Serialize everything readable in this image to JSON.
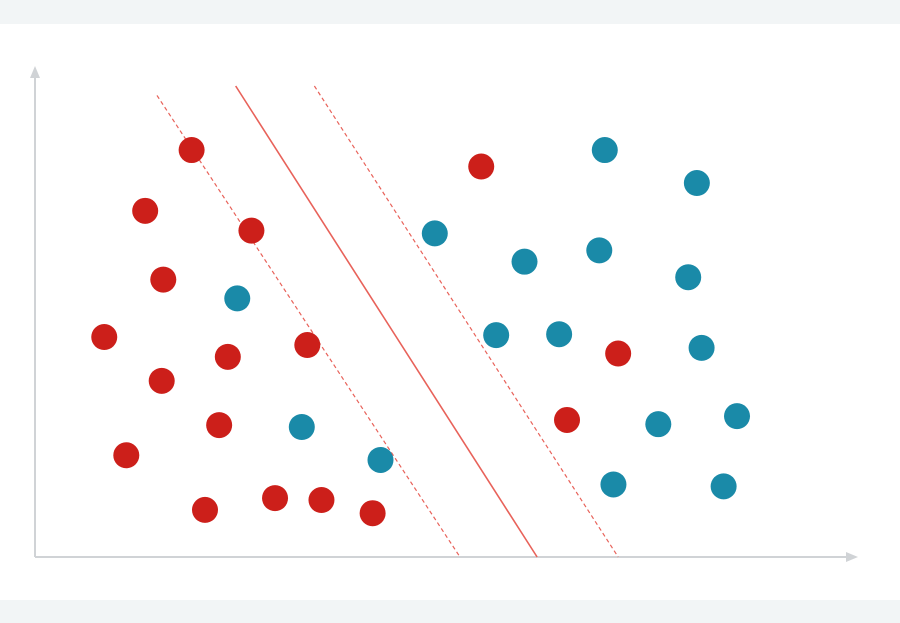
{
  "chart_data": {
    "type": "scatter",
    "title": "",
    "xlabel": "",
    "ylabel": "",
    "xlim": [
      0,
      100
    ],
    "ylim": [
      0,
      100
    ],
    "grid": false,
    "colors": {
      "class_a": "#cc1f1a",
      "class_b": "#1a8aa8",
      "hyperplane": "#e8625a",
      "axis": "#d0d3d6",
      "background": "#ffffff",
      "band": "#f2f5f6"
    },
    "series": [
      {
        "color_key": "class_a",
        "points": [
          [
            19.9,
            86.4
          ],
          [
            14.0,
            73.5
          ],
          [
            27.5,
            69.3
          ],
          [
            16.3,
            58.9
          ],
          [
            8.8,
            46.7
          ],
          [
            24.5,
            42.5
          ],
          [
            34.6,
            45.0
          ],
          [
            16.1,
            37.4
          ],
          [
            23.4,
            28.0
          ],
          [
            11.6,
            21.6
          ],
          [
            21.6,
            10.0
          ],
          [
            30.5,
            12.5
          ],
          [
            36.4,
            12.1
          ],
          [
            42.9,
            9.3
          ],
          [
            56.7,
            82.9
          ],
          [
            74.1,
            43.2
          ],
          [
            67.6,
            29.1
          ]
        ]
      },
      {
        "color_key": "class_b",
        "points": [
          [
            25.7,
            54.9
          ],
          [
            33.9,
            27.6
          ],
          [
            43.9,
            20.6
          ],
          [
            50.8,
            68.7
          ],
          [
            62.2,
            62.7
          ],
          [
            72.4,
            86.4
          ],
          [
            84.1,
            79.4
          ],
          [
            71.7,
            65.1
          ],
          [
            83.0,
            59.4
          ],
          [
            58.6,
            47.1
          ],
          [
            66.6,
            47.3
          ],
          [
            84.7,
            44.4
          ],
          [
            79.2,
            28.2
          ],
          [
            89.2,
            29.9
          ],
          [
            73.5,
            15.4
          ],
          [
            87.5,
            15.0
          ]
        ]
      }
    ],
    "lines": [
      {
        "style": "solid",
        "from": [
          25.5,
          100
        ],
        "to": [
          63.8,
          0
        ]
      },
      {
        "style": "dashed",
        "from": [
          15.5,
          98
        ],
        "to": [
          54.0,
          0
        ]
      },
      {
        "style": "dashed",
        "from": [
          35.5,
          100
        ],
        "to": [
          74.1,
          0
        ]
      }
    ]
  }
}
